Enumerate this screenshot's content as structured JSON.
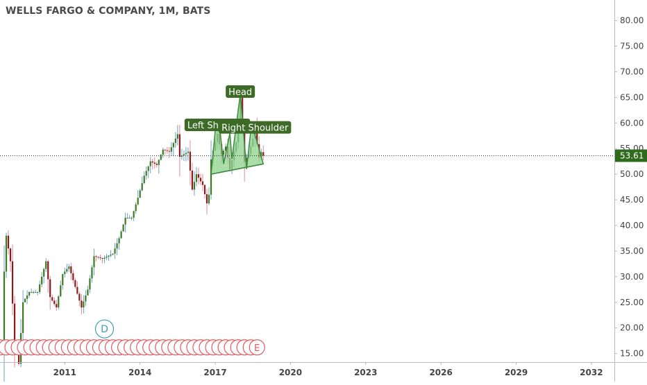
{
  "header": {
    "title": "WELLS FARGO & COMPANY, 1M, BATS"
  },
  "colors": {
    "up": "#3b7a1f",
    "down": "#8b1a1a",
    "pattern_fill": "#8fd18f",
    "pattern_stroke": "#3c8a3c",
    "label_bg": "#3d6b27",
    "price_line": "#2b2b2b",
    "price_badge": "#2f6b1c",
    "event_circle": "#e05a62",
    "dividend_circle": "#3aa0b0"
  },
  "chart_data": {
    "type": "candlestick",
    "interval": "1M",
    "x_tick_labels": [
      "2011",
      "2014",
      "2017",
      "2020",
      "2023",
      "2026",
      "2029",
      "2032"
    ],
    "y_tick_labels": [
      "80.00",
      "75.00",
      "70.00",
      "65.00",
      "60.00",
      "55.00",
      "50.00",
      "45.00",
      "40.00",
      "35.00",
      "30.00",
      "25.00",
      "20.00",
      "15.00"
    ],
    "ylim": [
      14.0,
      84.0
    ],
    "xlim": [
      "2008-06",
      "2032-12"
    ],
    "last_price": "53.61",
    "anchors": [
      [
        "2008-07",
        15.0
      ],
      [
        "2008-08",
        31.0
      ],
      [
        "2008-09",
        38.0
      ],
      [
        "2008-11",
        33.0
      ],
      [
        "2009-01",
        16.5
      ],
      [
        "2009-03",
        13.0
      ],
      [
        "2009-05",
        25.0
      ],
      [
        "2009-08",
        27.0
      ],
      [
        "2009-12",
        27.0
      ],
      [
        "2010-04",
        33.0
      ],
      [
        "2010-06",
        26.0
      ],
      [
        "2010-09",
        24.0
      ],
      [
        "2010-12",
        30.5
      ],
      [
        "2011-03",
        32.0
      ],
      [
        "2011-06",
        28.0
      ],
      [
        "2011-09",
        24.0
      ],
      [
        "2011-12",
        27.5
      ],
      [
        "2012-03",
        34.0
      ],
      [
        "2012-07",
        33.5
      ],
      [
        "2012-12",
        34.5
      ],
      [
        "2013-03",
        37.5
      ],
      [
        "2013-06",
        41.5
      ],
      [
        "2013-09",
        41.5
      ],
      [
        "2013-12",
        45.4
      ],
      [
        "2014-03",
        49.7
      ],
      [
        "2014-06",
        52.5
      ],
      [
        "2014-09",
        51.8
      ],
      [
        "2014-12",
        54.8
      ],
      [
        "2015-03",
        54.4
      ],
      [
        "2015-07",
        57.8
      ],
      [
        "2015-08",
        53.4
      ],
      [
        "2015-12",
        54.4
      ],
      [
        "2016-02",
        47.0
      ],
      [
        "2016-04",
        50.0
      ],
      [
        "2016-07",
        47.9
      ],
      [
        "2016-09",
        44.3
      ],
      [
        "2016-10",
        46.0
      ],
      [
        "2016-11",
        52.9
      ],
      [
        "2017-01",
        56.3
      ],
      [
        "2017-02",
        57.9
      ],
      [
        "2017-04",
        53.8
      ],
      [
        "2017-06",
        55.4
      ],
      [
        "2017-08",
        51.0
      ],
      [
        "2017-11",
        56.2
      ],
      [
        "2018-01",
        65.5
      ],
      [
        "2018-03",
        52.4
      ],
      [
        "2018-05",
        54.0
      ],
      [
        "2018-06",
        55.4
      ],
      [
        "2018-08",
        58.5
      ],
      [
        "2018-10",
        53.2
      ],
      [
        "2018-11",
        54.3
      ],
      [
        "2018-12",
        53.61
      ]
    ],
    "pattern": {
      "name": "head and shoulders",
      "labels": [
        {
          "text": "Left Shoulder",
          "date": "2017-02",
          "price": 59.5
        },
        {
          "text": "Head",
          "date": "2018-01",
          "price": 66.0
        },
        {
          "text": "Right Shoulder",
          "date": "2018-08",
          "price": 59.0
        }
      ],
      "vertices": [
        [
          "2016-11",
          50.0
        ],
        [
          "2017-01",
          58.5
        ],
        [
          "2017-03",
          59.6
        ],
        [
          "2017-05",
          52.0
        ],
        [
          "2017-08",
          58.0
        ],
        [
          "2017-09",
          53.0
        ],
        [
          "2018-01",
          65.7
        ],
        [
          "2018-04",
          51.0
        ],
        [
          "2018-06",
          58.5
        ],
        [
          "2018-08",
          57.8
        ],
        [
          "2018-12",
          52.0
        ]
      ]
    },
    "events": {
      "dividend_label": "D",
      "earnings_label": "E",
      "dividend_date": "2012-08",
      "earnings_start": "2008-06",
      "earnings_end": "2018-09",
      "earnings_step_months": 3
    },
    "grid": false
  }
}
